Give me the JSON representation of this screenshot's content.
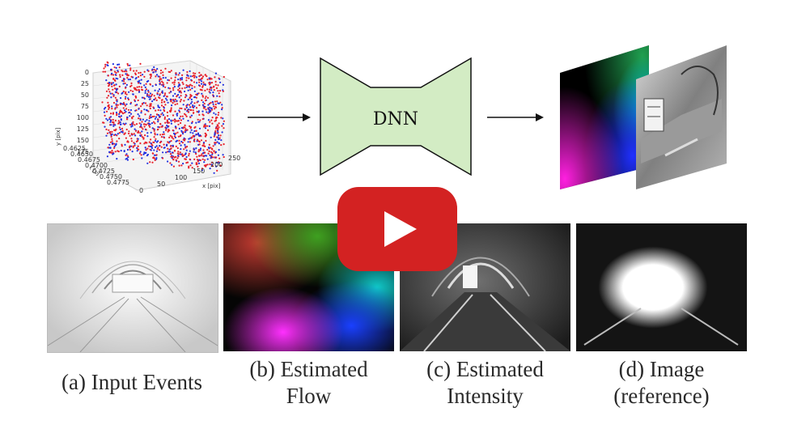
{
  "network": {
    "label": "DNN",
    "fill": "#d3ecc4"
  },
  "scatter3d": {
    "y_axis_label": "y [pix]",
    "x_axis_label": "x [pix]",
    "t_axis_label": "t [s]",
    "y_ticks": [
      "0",
      "25",
      "50",
      "75",
      "100",
      "125",
      "150",
      "175"
    ],
    "x_ticks": [
      "0",
      "50",
      "100",
      "150",
      "200",
      "250"
    ],
    "t_ticks": [
      "0.4625",
      "0.4650",
      "0.4675",
      "0.4700",
      "0.4725",
      "0.4750",
      "0.4775"
    ],
    "colors": {
      "positive": "#e8202a",
      "negative": "#2030e0"
    }
  },
  "panels": [
    {
      "caption_line1": "(a) Input Events",
      "caption_line2": ""
    },
    {
      "caption_line1": "(b) Estimated",
      "caption_line2": "Flow"
    },
    {
      "caption_line1": "(c) Estimated",
      "caption_line2": "Intensity"
    },
    {
      "caption_line1": "(d) Image",
      "caption_line2": "(reference)"
    }
  ],
  "play_button": {
    "color": "#d32222"
  }
}
